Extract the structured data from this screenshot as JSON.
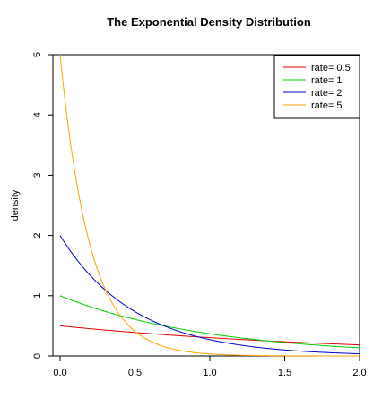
{
  "chart_data": {
    "type": "line",
    "title": "The Exponential Density Distribution",
    "xlabel": "",
    "ylabel": "density",
    "xlim": [
      0,
      2
    ],
    "ylim": [
      0,
      5
    ],
    "x_ticks": [
      "0.0",
      "0.5",
      "1.0",
      "1.5",
      "2.0"
    ],
    "y_ticks": [
      "0",
      "1",
      "2",
      "3",
      "4",
      "5"
    ],
    "legend_position": "top-right",
    "grid": false,
    "x": [
      0.0,
      0.1,
      0.2,
      0.3,
      0.4,
      0.5,
      0.6,
      0.7,
      0.8,
      0.9,
      1.0,
      1.1,
      1.2,
      1.3,
      1.4,
      1.5,
      1.6,
      1.7,
      1.8,
      1.9,
      2.0
    ],
    "series": [
      {
        "name": "rate= 0.5",
        "color": "#dd0000",
        "values": [
          0.5,
          0.476,
          0.452,
          0.43,
          0.409,
          0.389,
          0.37,
          0.352,
          0.335,
          0.319,
          0.303,
          0.288,
          0.274,
          0.261,
          0.248,
          0.236,
          0.225,
          0.214,
          0.203,
          0.193,
          0.184
        ]
      },
      {
        "name": "rate= 1",
        "color": "#00cc00",
        "values": [
          1.0,
          0.905,
          0.819,
          0.741,
          0.67,
          0.607,
          0.549,
          0.497,
          0.449,
          0.407,
          0.368,
          0.333,
          0.301,
          0.273,
          0.247,
          0.223,
          0.202,
          0.183,
          0.165,
          0.15,
          0.135
        ]
      },
      {
        "name": "rate= 2",
        "color": "#0000cc",
        "values": [
          2.0,
          1.637,
          1.341,
          1.098,
          0.899,
          0.736,
          0.602,
          0.493,
          0.404,
          0.331,
          0.271,
          0.222,
          0.181,
          0.149,
          0.122,
          0.1,
          0.082,
          0.067,
          0.055,
          0.045,
          0.037
        ]
      },
      {
        "name": "rate= 5",
        "color": "#ffa500",
        "values": [
          5.0,
          3.033,
          1.839,
          1.116,
          0.677,
          0.41,
          0.249,
          0.151,
          0.092,
          0.056,
          0.034,
          0.02,
          0.012,
          0.0075,
          0.0046,
          0.0028,
          0.0017,
          0.001,
          0.0006,
          0.0004,
          0.0002
        ]
      }
    ]
  }
}
